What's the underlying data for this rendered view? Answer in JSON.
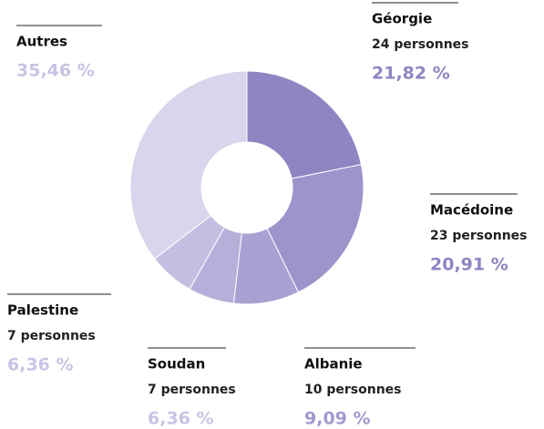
{
  "chart_data": {
    "type": "donut",
    "categories": [
      "Géorgie",
      "Macédoine",
      "Albanie",
      "Soudan",
      "Palestine",
      "Autres"
    ],
    "values": [
      21.82,
      20.91,
      9.09,
      6.36,
      6.36,
      35.46
    ],
    "value_labels": [
      "21,82 %",
      "20,91 %",
      "9,09 %",
      "6,36 %",
      "6,36 %",
      "35,46 %"
    ],
    "details": [
      "24 personnes",
      "23 personnes",
      "10 personnes",
      "7 personnes",
      "7 personnes",
      null
    ],
    "colors": [
      "#8e86c2",
      "#9c95cb",
      "#a8a2d3",
      "#b5b0da",
      "#c3bfe2",
      "#d8d5ec"
    ]
  }
}
